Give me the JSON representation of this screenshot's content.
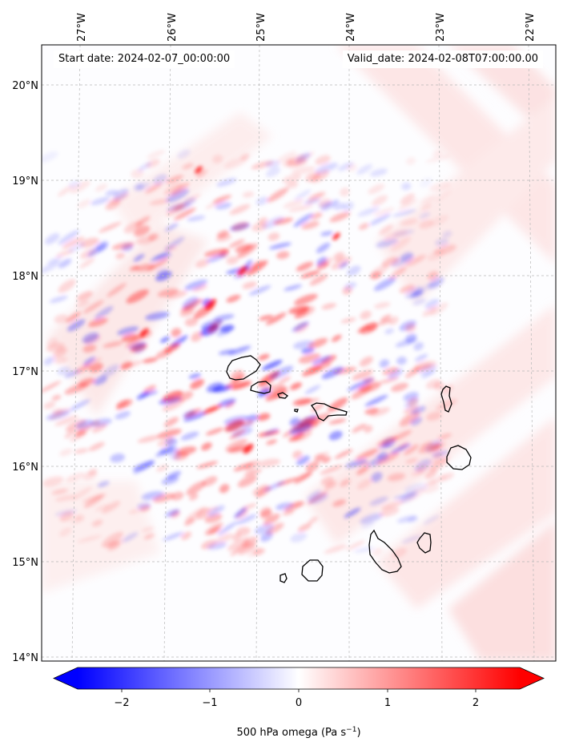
{
  "header": {
    "start_date": "Start date: 2024-02-07_00:00:00",
    "valid_date": "Valid_date: 2024-02-08T07:00:00.00"
  },
  "map": {
    "lon_labels": [
      "27°W",
      "26°W",
      "25°W",
      "24°W",
      "23°W",
      "22°W"
    ],
    "lat_labels": [
      "20°N",
      "19°N",
      "18°N",
      "17°N",
      "16°N",
      "15°N",
      "14°N"
    ],
    "field": "500 hPa omega"
  },
  "colorbar": {
    "label_main": "500 hPa omega (Pa s",
    "label_exp": "−1",
    "label_close": ")",
    "ticks": [
      "−2",
      "−1",
      "0",
      "1",
      "2"
    ],
    "range": [
      -2.5,
      2.5
    ],
    "colors": {
      "negative": "#0000ff",
      "zero": "#ffffff",
      "positive": "#ff0000"
    }
  },
  "islands": [
    "Santo Antão",
    "São Vicente",
    "Santa Luzia",
    "Ilhéu Raso",
    "São Nicolau",
    "Sal",
    "Boa Vista",
    "Maio",
    "Santiago",
    "Fogo",
    "Brava"
  ]
}
